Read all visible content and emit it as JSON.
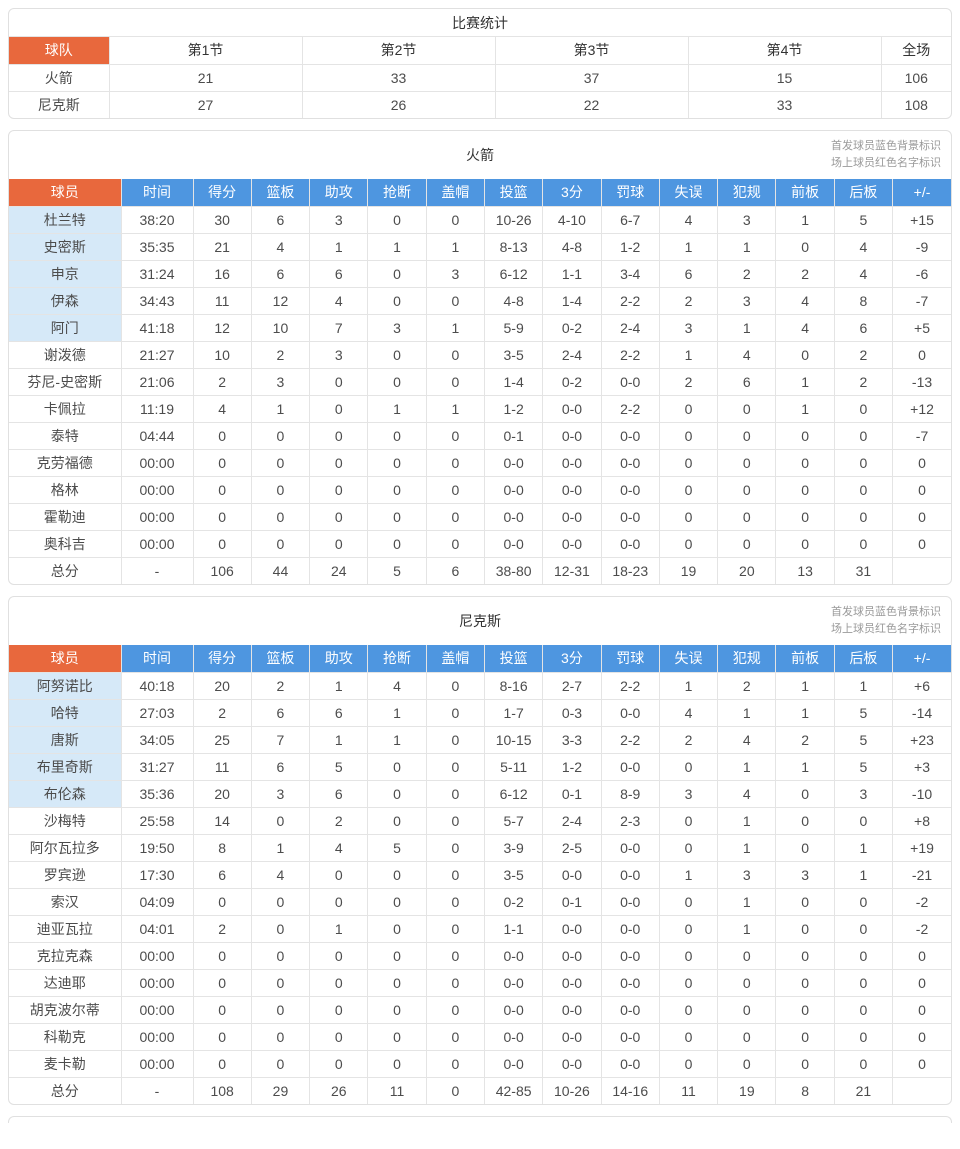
{
  "page": {
    "legend_line1": "首发球员蓝色背景标识",
    "legend_line2": "场上球员红色名字标识"
  },
  "colors": {
    "accent_orange": "#E8683D",
    "header_blue": "#4E96E0",
    "starter_bg": "#D6E9F8"
  },
  "score_table": {
    "title": "比赛统计",
    "columns": [
      "球队",
      "第1节",
      "第2节",
      "第3节",
      "第4节",
      "全场"
    ],
    "rows": [
      {
        "team": "火箭",
        "values": [
          "21",
          "33",
          "37",
          "15",
          "106"
        ]
      },
      {
        "team": "尼克斯",
        "values": [
          "27",
          "26",
          "22",
          "33",
          "108"
        ]
      }
    ]
  },
  "player_tables": [
    {
      "team": "火箭",
      "columns": [
        "球员",
        "时间",
        "得分",
        "篮板",
        "助攻",
        "抢断",
        "盖帽",
        "投篮",
        "3分",
        "罚球",
        "失误",
        "犯规",
        "前板",
        "后板",
        "+/-"
      ],
      "rows": [
        {
          "name": "杜兰特",
          "starter": true,
          "values": [
            "38:20",
            "30",
            "6",
            "3",
            "0",
            "0",
            "10-26",
            "4-10",
            "6-7",
            "4",
            "3",
            "1",
            "5",
            "+15"
          ]
        },
        {
          "name": "史密斯",
          "starter": true,
          "values": [
            "35:35",
            "21",
            "4",
            "1",
            "1",
            "1",
            "8-13",
            "4-8",
            "1-2",
            "1",
            "1",
            "0",
            "4",
            "-9"
          ]
        },
        {
          "name": "申京",
          "starter": true,
          "values": [
            "31:24",
            "16",
            "6",
            "6",
            "0",
            "3",
            "6-12",
            "1-1",
            "3-4",
            "6",
            "2",
            "2",
            "4",
            "-6"
          ]
        },
        {
          "name": "伊森",
          "starter": true,
          "values": [
            "34:43",
            "11",
            "12",
            "4",
            "0",
            "0",
            "4-8",
            "1-4",
            "2-2",
            "2",
            "3",
            "4",
            "8",
            "-7"
          ]
        },
        {
          "name": "阿门",
          "starter": true,
          "values": [
            "41:18",
            "12",
            "10",
            "7",
            "3",
            "1",
            "5-9",
            "0-2",
            "2-4",
            "3",
            "1",
            "4",
            "6",
            "+5"
          ]
        },
        {
          "name": "谢泼德",
          "starter": false,
          "values": [
            "21:27",
            "10",
            "2",
            "3",
            "0",
            "0",
            "3-5",
            "2-4",
            "2-2",
            "1",
            "4",
            "0",
            "2",
            "0"
          ]
        },
        {
          "name": "芬尼-史密斯",
          "starter": false,
          "values": [
            "21:06",
            "2",
            "3",
            "0",
            "0",
            "0",
            "1-4",
            "0-2",
            "0-0",
            "2",
            "6",
            "1",
            "2",
            "-13"
          ]
        },
        {
          "name": "卡佩拉",
          "starter": false,
          "values": [
            "11:19",
            "4",
            "1",
            "0",
            "1",
            "1",
            "1-2",
            "0-0",
            "2-2",
            "0",
            "0",
            "1",
            "0",
            "+12"
          ]
        },
        {
          "name": "泰特",
          "starter": false,
          "values": [
            "04:44",
            "0",
            "0",
            "0",
            "0",
            "0",
            "0-1",
            "0-0",
            "0-0",
            "0",
            "0",
            "0",
            "0",
            "-7"
          ]
        },
        {
          "name": "克劳福德",
          "starter": false,
          "values": [
            "00:00",
            "0",
            "0",
            "0",
            "0",
            "0",
            "0-0",
            "0-0",
            "0-0",
            "0",
            "0",
            "0",
            "0",
            "0"
          ]
        },
        {
          "name": "格林",
          "starter": false,
          "values": [
            "00:00",
            "0",
            "0",
            "0",
            "0",
            "0",
            "0-0",
            "0-0",
            "0-0",
            "0",
            "0",
            "0",
            "0",
            "0"
          ]
        },
        {
          "name": "霍勒迪",
          "starter": false,
          "values": [
            "00:00",
            "0",
            "0",
            "0",
            "0",
            "0",
            "0-0",
            "0-0",
            "0-0",
            "0",
            "0",
            "0",
            "0",
            "0"
          ]
        },
        {
          "name": "奥科吉",
          "starter": false,
          "values": [
            "00:00",
            "0",
            "0",
            "0",
            "0",
            "0",
            "0-0",
            "0-0",
            "0-0",
            "0",
            "0",
            "0",
            "0",
            "0"
          ]
        }
      ],
      "total": {
        "label": "总分",
        "values": [
          "-",
          "106",
          "44",
          "24",
          "5",
          "6",
          "38-80",
          "12-31",
          "18-23",
          "19",
          "20",
          "13",
          "31",
          ""
        ]
      }
    },
    {
      "team": "尼克斯",
      "columns": [
        "球员",
        "时间",
        "得分",
        "篮板",
        "助攻",
        "抢断",
        "盖帽",
        "投篮",
        "3分",
        "罚球",
        "失误",
        "犯规",
        "前板",
        "后板",
        "+/-"
      ],
      "rows": [
        {
          "name": "阿努诺比",
          "starter": true,
          "values": [
            "40:18",
            "20",
            "2",
            "1",
            "4",
            "0",
            "8-16",
            "2-7",
            "2-2",
            "1",
            "2",
            "1",
            "1",
            "+6"
          ]
        },
        {
          "name": "哈特",
          "starter": true,
          "values": [
            "27:03",
            "2",
            "6",
            "6",
            "1",
            "0",
            "1-7",
            "0-3",
            "0-0",
            "4",
            "1",
            "1",
            "5",
            "-14"
          ]
        },
        {
          "name": "唐斯",
          "starter": true,
          "values": [
            "34:05",
            "25",
            "7",
            "1",
            "1",
            "0",
            "10-15",
            "3-3",
            "2-2",
            "2",
            "4",
            "2",
            "5",
            "+23"
          ]
        },
        {
          "name": "布里奇斯",
          "starter": true,
          "values": [
            "31:27",
            "11",
            "6",
            "5",
            "0",
            "0",
            "5-11",
            "1-2",
            "0-0",
            "0",
            "1",
            "1",
            "5",
            "+3"
          ]
        },
        {
          "name": "布伦森",
          "starter": true,
          "values": [
            "35:36",
            "20",
            "3",
            "6",
            "0",
            "0",
            "6-12",
            "0-1",
            "8-9",
            "3",
            "4",
            "0",
            "3",
            "-10"
          ]
        },
        {
          "name": "沙梅特",
          "starter": false,
          "values": [
            "25:58",
            "14",
            "0",
            "2",
            "0",
            "0",
            "5-7",
            "2-4",
            "2-3",
            "0",
            "1",
            "0",
            "0",
            "+8"
          ]
        },
        {
          "name": "阿尔瓦拉多",
          "starter": false,
          "values": [
            "19:50",
            "8",
            "1",
            "4",
            "5",
            "0",
            "3-9",
            "2-5",
            "0-0",
            "0",
            "1",
            "0",
            "1",
            "+19"
          ]
        },
        {
          "name": "罗宾逊",
          "starter": false,
          "values": [
            "17:30",
            "6",
            "4",
            "0",
            "0",
            "0",
            "3-5",
            "0-0",
            "0-0",
            "1",
            "3",
            "3",
            "1",
            "-21"
          ]
        },
        {
          "name": "索汉",
          "starter": false,
          "values": [
            "04:09",
            "0",
            "0",
            "0",
            "0",
            "0",
            "0-2",
            "0-1",
            "0-0",
            "0",
            "1",
            "0",
            "0",
            "-2"
          ]
        },
        {
          "name": "迪亚瓦拉",
          "starter": false,
          "values": [
            "04:01",
            "2",
            "0",
            "1",
            "0",
            "0",
            "1-1",
            "0-0",
            "0-0",
            "0",
            "1",
            "0",
            "0",
            "-2"
          ]
        },
        {
          "name": "克拉克森",
          "starter": false,
          "values": [
            "00:00",
            "0",
            "0",
            "0",
            "0",
            "0",
            "0-0",
            "0-0",
            "0-0",
            "0",
            "0",
            "0",
            "0",
            "0"
          ]
        },
        {
          "name": "达迪耶",
          "starter": false,
          "values": [
            "00:00",
            "0",
            "0",
            "0",
            "0",
            "0",
            "0-0",
            "0-0",
            "0-0",
            "0",
            "0",
            "0",
            "0",
            "0"
          ]
        },
        {
          "name": "胡克波尔蒂",
          "starter": false,
          "values": [
            "00:00",
            "0",
            "0",
            "0",
            "0",
            "0",
            "0-0",
            "0-0",
            "0-0",
            "0",
            "0",
            "0",
            "0",
            "0"
          ]
        },
        {
          "name": "科勒克",
          "starter": false,
          "values": [
            "00:00",
            "0",
            "0",
            "0",
            "0",
            "0",
            "0-0",
            "0-0",
            "0-0",
            "0",
            "0",
            "0",
            "0",
            "0"
          ]
        },
        {
          "name": "麦卡勒",
          "starter": false,
          "values": [
            "00:00",
            "0",
            "0",
            "0",
            "0",
            "0",
            "0-0",
            "0-0",
            "0-0",
            "0",
            "0",
            "0",
            "0",
            "0"
          ]
        }
      ],
      "total": {
        "label": "总分",
        "values": [
          "-",
          "108",
          "29",
          "26",
          "11",
          "0",
          "42-85",
          "10-26",
          "14-16",
          "11",
          "19",
          "8",
          "21",
          ""
        ]
      }
    }
  ]
}
